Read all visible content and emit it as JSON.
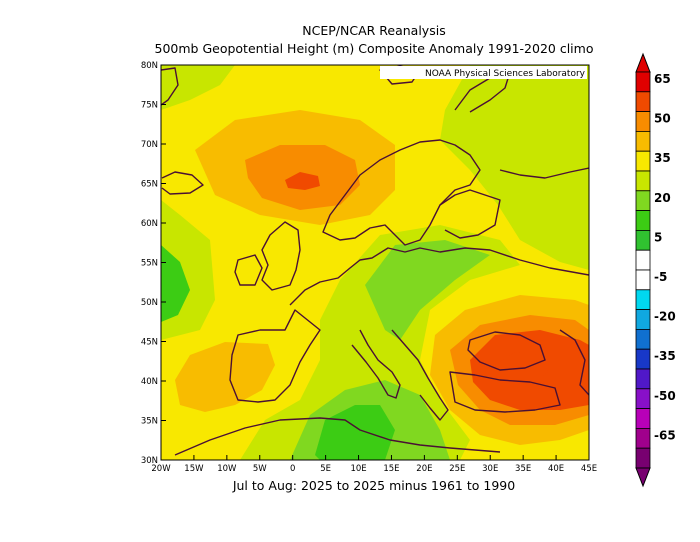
{
  "header": {
    "title1": "NCEP/NCAR Reanalysis",
    "title2": "500mb Geopotential Height (m) Composite Anomaly 1991-2020 climo",
    "subtitle": "Jul to Aug: 2025 to 2025 minus 1961 to 1990",
    "credit": "NOAA Physical Sciences Laboratory"
  },
  "axes": {
    "lat_labels": [
      "80N",
      "75N",
      "70N",
      "65N",
      "60N",
      "55N",
      "50N",
      "45N",
      "40N",
      "35N",
      "30N"
    ],
    "lon_labels": [
      "20W",
      "15W",
      "10W",
      "5W",
      "0",
      "5E",
      "10E",
      "15E",
      "20E",
      "25E",
      "30E",
      "35E",
      "40E",
      "45E"
    ]
  },
  "colorbar": {
    "labels": [
      "65",
      "50",
      "35",
      "20",
      "5",
      "-5",
      "-20",
      "-35",
      "-50",
      "-65"
    ],
    "colors": [
      "#e00000",
      "#f04a00",
      "#f88c00",
      "#f8bc00",
      "#f8e800",
      "#c8e600",
      "#80d820",
      "#3ccc14",
      "#30c230",
      "#ffffff",
      "#ffffff",
      "#00d8f0",
      "#10a8e0",
      "#1070d0",
      "#1838c8",
      "#5018c8",
      "#8810c8",
      "#b800b8",
      "#a0008c",
      "#780070"
    ]
  },
  "map_colors": {
    "c50": "#f04a00",
    "c45": "#f88c00",
    "c35": "#f8bc00",
    "c30": "#f8e800",
    "c20": "#c8e600",
    "c15": "#80d820",
    "c10": "#3ccc14",
    "coast": "#4a1034"
  }
}
